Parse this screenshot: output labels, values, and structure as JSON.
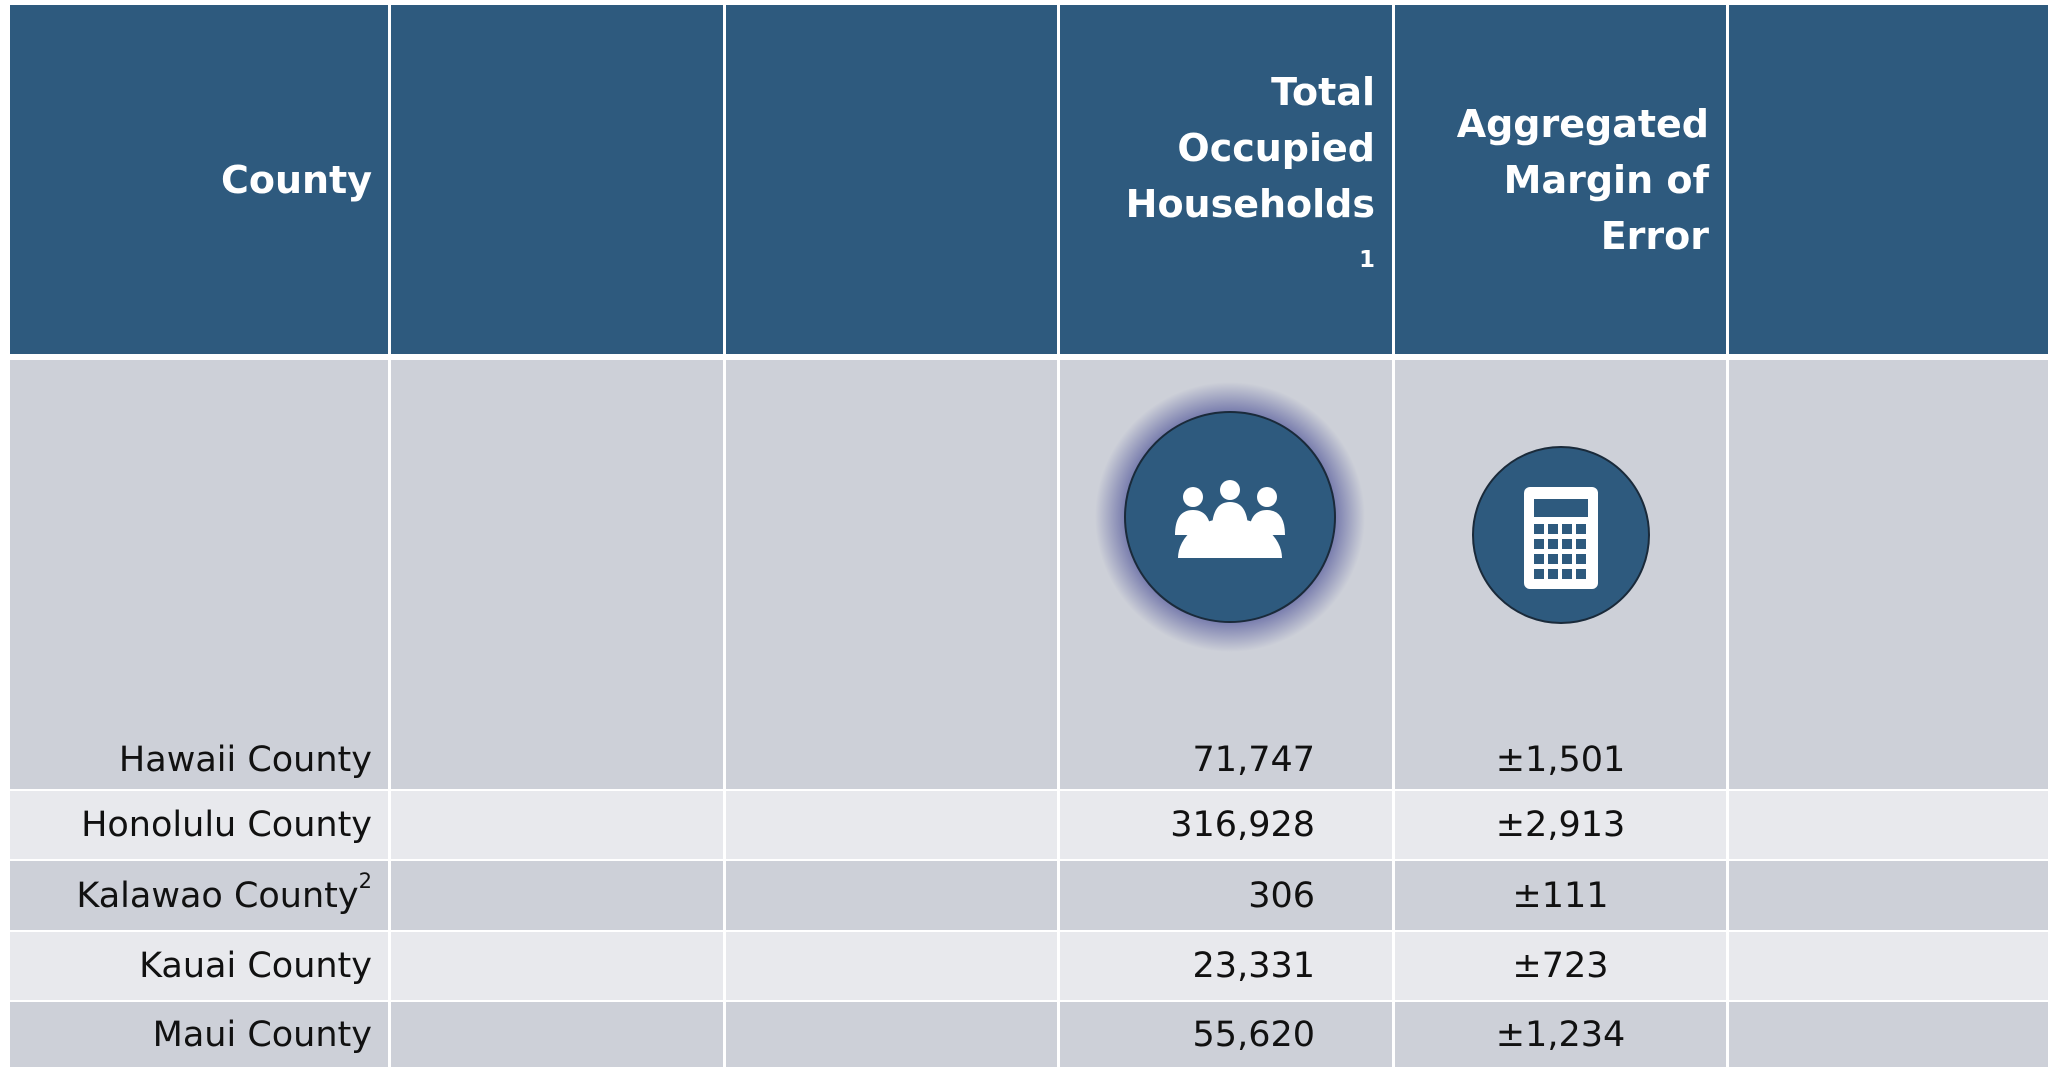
{
  "header": {
    "county": "County",
    "households": "Total Occupied Households",
    "households_note": "1",
    "moe": "Aggregated Margin of Error"
  },
  "rows": [
    {
      "county": "Hawaii County",
      "households": "71,747",
      "moe": "±1,501"
    },
    {
      "county": "Honolulu County",
      "households": "316,928",
      "moe": "±2,913"
    },
    {
      "county": "Kalawao County",
      "county_note": "2",
      "households": "306",
      "moe": "±111"
    },
    {
      "county": "Kauai County",
      "households": "23,331",
      "moe": "±723"
    },
    {
      "county": "Maui County",
      "households": "55,620",
      "moe": "±1,234"
    }
  ]
}
